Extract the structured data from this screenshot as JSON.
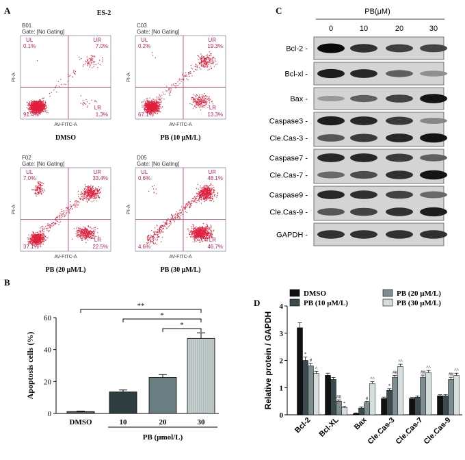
{
  "panels": {
    "A": {
      "letter": "A",
      "title": "ES-2",
      "x_axis_label": "AV-FITC-A",
      "y_axis_label": "PI-A",
      "plots": [
        {
          "id": "B01",
          "gate": "Gate: [No Gating]",
          "caption": "DMSO",
          "UL": "0.1%",
          "UR": "7.0%",
          "LL": "91.4%",
          "LR": "1.3%"
        },
        {
          "id": "C03",
          "gate": "Gate: [No Gating]",
          "caption": "PB (10 μM/L)",
          "UL": "0.2%",
          "UR": "19.3%",
          "LL": "67.1%",
          "LR": "13.3%"
        },
        {
          "id": "F02",
          "gate": "Gate: [No Gating]",
          "caption": "PB (20 μM/L)",
          "UL": "7.0%",
          "UR": "33.4%",
          "LL": "37.1%",
          "LR": "22.5%"
        },
        {
          "id": "D05",
          "gate": "Gate: [No Gating]",
          "caption": "PB (30 μM/L)",
          "UL": "0.6%",
          "UR": "48.1%",
          "LL": "4.6%",
          "LR": "46.7%"
        }
      ]
    },
    "B": {
      "letter": "B"
    },
    "C": {
      "letter": "C",
      "treatment_label": "PB(μM)",
      "doses": [
        "0",
        "10",
        "20",
        "30"
      ],
      "blot_groups": [
        {
          "labels": [
            "Bcl-2 -"
          ]
        },
        {
          "labels": [
            "Bcl-xl -"
          ]
        },
        {
          "labels": [
            "Bax -"
          ]
        },
        {
          "labels": [
            "Caspase3 -",
            "Cle.Cas-3 -"
          ]
        },
        {
          "labels": [
            "Caspase7 -",
            "Cle.Cas-7 -"
          ]
        },
        {
          "labels": [
            "Caspase9 -",
            "Cle.Cas-9 -"
          ]
        },
        {
          "labels": [
            "GAPDH -"
          ]
        }
      ]
    },
    "D": {
      "letter": "D"
    }
  },
  "chart_data": [
    {
      "type": "bar",
      "categories": [
        "DMSO",
        "10",
        "20",
        "30"
      ],
      "values": [
        1.2,
        13.5,
        22.5,
        47.0
      ],
      "errors": [
        0.3,
        1.2,
        1.8,
        3.5
      ],
      "colors": [
        "#5a5a5a",
        "#2e3e40",
        "#6a7e82",
        "#c8d0d0"
      ],
      "xlabel": "PB (μmol/L)",
      "ylabel": "Apoptosis cells (%)",
      "ylim": [
        0,
        60
      ],
      "yticks": [
        0,
        20,
        40,
        60
      ],
      "significance": [
        {
          "from": "DMSO",
          "to": "30",
          "label": "**"
        },
        {
          "from": "10",
          "to": "30",
          "label": "*"
        },
        {
          "from": "20",
          "to": "30",
          "label": "*"
        }
      ]
    },
    {
      "type": "bar",
      "categories": [
        "Bcl-2",
        "Bcl-XL",
        "Bax",
        "Cle.Cas-3",
        "Cle.Cas-7",
        "Cle.Cas-9"
      ],
      "ylabel": "Relative protein / GAPDH",
      "ylim": [
        0,
        4
      ],
      "yticks": [
        0,
        1,
        2,
        3,
        4
      ],
      "yticklabels": [
        "0",
        "1",
        "2",
        "3",
        "4"
      ],
      "legend": "top",
      "series": [
        {
          "name": "DMSO",
          "color": "#111111",
          "values": [
            3.2,
            1.45,
            0.05,
            0.6,
            0.6,
            0.7
          ],
          "errors": [
            0.18,
            0.08,
            0.02,
            0.05,
            0.04,
            0.04
          ],
          "marks": [
            "",
            "",
            "",
            "",
            "",
            ""
          ]
        },
        {
          "name": "PB (10 μM/L)",
          "color": "#3b4a4c",
          "values": [
            2.0,
            1.3,
            0.25,
            0.9,
            0.65,
            0.7
          ],
          "errors": [
            0.12,
            0.07,
            0.04,
            0.06,
            0.04,
            0.04
          ],
          "marks": [
            "*",
            "",
            "",
            "*",
            "",
            ""
          ]
        },
        {
          "name": "PB (20 μM/L)",
          "color": "#7d8e91",
          "values": [
            1.8,
            0.5,
            0.45,
            1.38,
            1.38,
            1.3
          ],
          "errors": [
            0.1,
            0.05,
            0.04,
            0.07,
            0.08,
            0.08
          ],
          "marks": [
            "#",
            "##",
            "#",
            "##",
            "##",
            "##"
          ]
        },
        {
          "name": "PB (30 μM/L)",
          "color": "#d6dddd",
          "values": [
            1.52,
            0.27,
            1.15,
            1.78,
            1.55,
            1.45
          ],
          "errors": [
            0.08,
            0.04,
            0.07,
            0.08,
            0.08,
            0.08
          ],
          "marks": [
            "^",
            "*",
            "^^",
            "^^",
            "^^",
            "^^"
          ]
        }
      ]
    }
  ]
}
